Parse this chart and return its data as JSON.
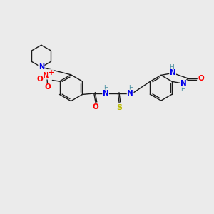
{
  "bg_color": "#ebebeb",
  "bond_color": "#1a1a1a",
  "atom_colors": {
    "N": "#0000ee",
    "O": "#ff0000",
    "S": "#bbbb00",
    "H": "#4a8fa0",
    "C": "#1a1a1a"
  },
  "fig_width": 3.0,
  "fig_height": 3.0,
  "dpi": 100,
  "lw": 1.0,
  "fs": 6.5
}
